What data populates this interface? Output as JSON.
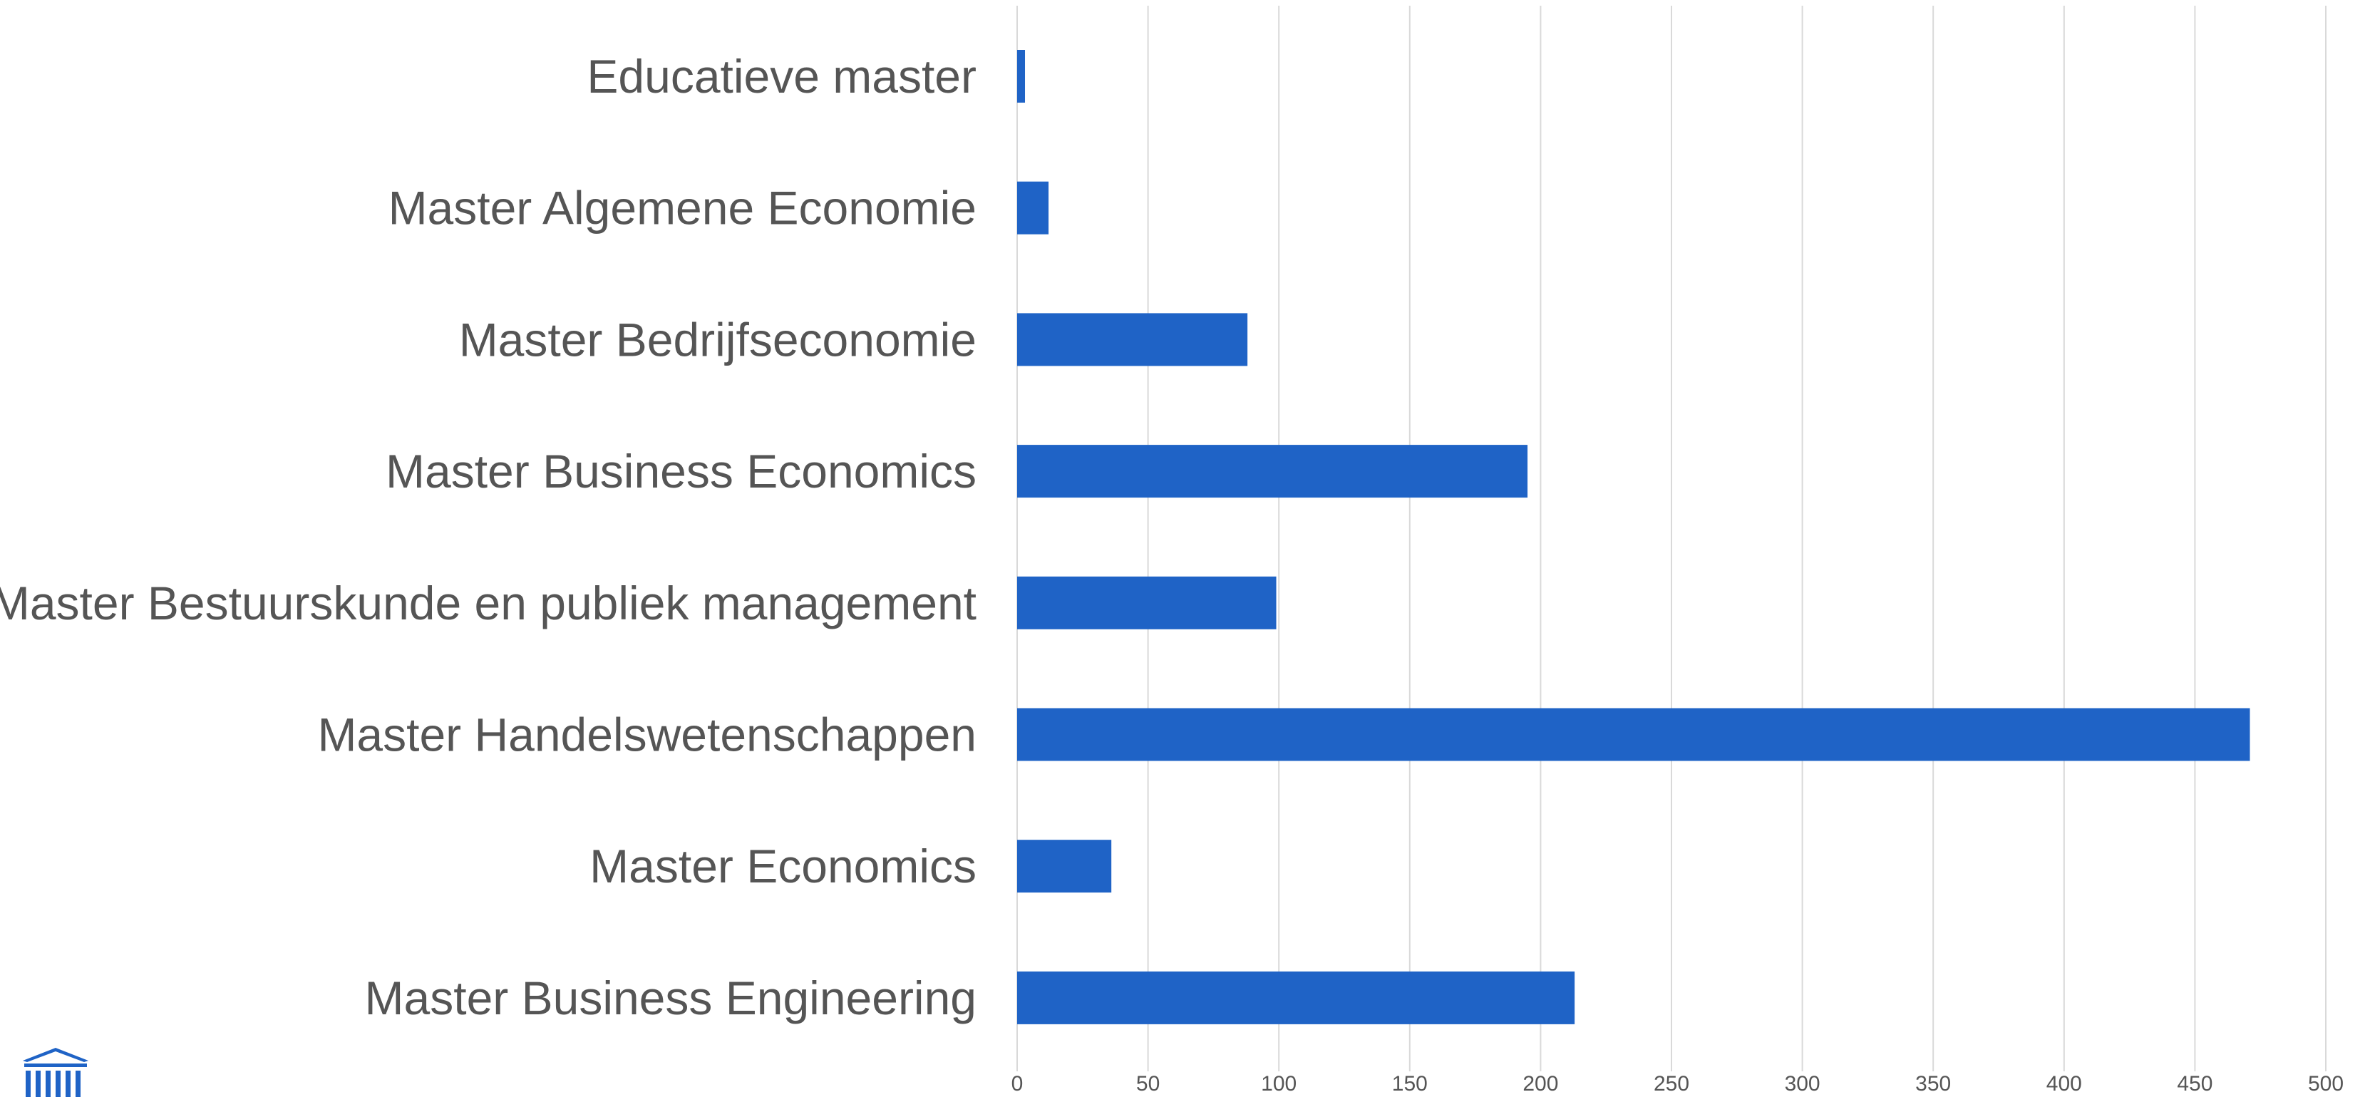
{
  "chart_data": {
    "type": "bar",
    "orientation": "horizontal",
    "title": "",
    "xlabel": "",
    "ylabel": "",
    "categories": [
      "Educatieve master",
      "Master Algemene Economie",
      "Master Bedrijfseconomie",
      "Master Business Economics",
      "Master Bestuurskunde en publiek management",
      "Master Handelswetenschappen",
      "Master Economics",
      "Master Business Engineering"
    ],
    "values": [
      3,
      12,
      88,
      195,
      99,
      471,
      36,
      213
    ],
    "xlim": [
      0,
      500
    ],
    "x_ticks": [
      "0",
      "50",
      "100",
      "150",
      "200",
      "250",
      "300",
      "350",
      "400",
      "450",
      "500"
    ],
    "grid": true,
    "legend": "none",
    "bar_color": "#1f63c6"
  },
  "logo": {
    "icon": "building-columns-icon",
    "color": "#1f63c6"
  }
}
